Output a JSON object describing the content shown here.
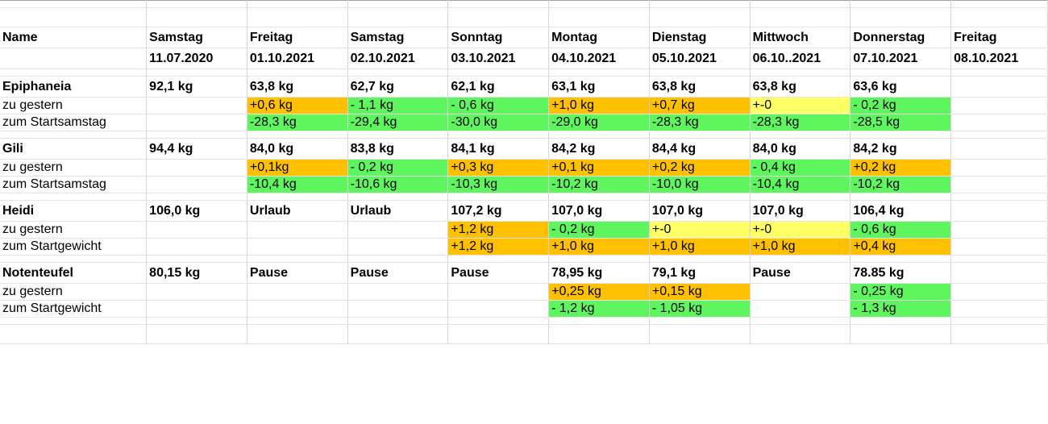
{
  "columns": [
    "Name",
    "Samstag",
    "Freitag",
    "Samstag",
    "Sonntag",
    "Montag",
    "Dienstag",
    "Mittwoch",
    "Donnerstag",
    "Freitag"
  ],
  "dates": [
    "",
    "11.07.2020",
    "01.10.2021",
    "02.10.2021",
    "03.10.2021",
    "04.10.2021",
    "05.10.2021",
    "06.10..2021",
    "07.10.2021",
    "08.10.2021"
  ],
  "colors": {
    "orange": "#ffc000",
    "green": "#5ef55e",
    "yellow": "#ffff66"
  },
  "people": [
    {
      "name": "Epiphaneia",
      "values": [
        "92,1 kg",
        "63,8 kg",
        "62,7 kg",
        "62,1 kg",
        "63,1 kg",
        "63,8 kg",
        "63,8 kg",
        "63,6 kg",
        ""
      ],
      "rows": [
        {
          "label": "zu gestern",
          "values": [
            "",
            "+0,6 kg",
            "- 1,1 kg",
            "- 0,6 kg",
            "+1,0 kg",
            "+0,7 kg",
            "+-0",
            "- 0,2 kg",
            ""
          ],
          "colors": [
            "",
            "orange",
            "green",
            "green",
            "orange",
            "orange",
            "yellow",
            "green",
            ""
          ]
        },
        {
          "label": "zum Startsamstag",
          "values": [
            "",
            "-28,3 kg",
            "-29,4 kg",
            "-30,0 kg",
            "-29,0 kg",
            "-28,3 kg",
            "-28,3 kg",
            "-28,5 kg",
            ""
          ],
          "colors": [
            "",
            "green",
            "green",
            "green",
            "green",
            "green",
            "green",
            "green",
            ""
          ]
        }
      ]
    },
    {
      "name": "Gili",
      "values": [
        "94,4 kg",
        "84,0 kg",
        "83,8 kg",
        "84,1 kg",
        "84,2 kg",
        "84,4 kg",
        "84,0 kg",
        "84,2 kg",
        ""
      ],
      "rows": [
        {
          "label": "zu gestern",
          "values": [
            "",
            "+0,1kg",
            "- 0,2 kg",
            "+0,3 kg",
            "+0,1 kg",
            "+0,2 kg",
            "- 0,4 kg",
            "+0,2 kg",
            ""
          ],
          "colors": [
            "",
            "orange",
            "green",
            "orange",
            "orange",
            "orange",
            "green",
            "orange",
            ""
          ]
        },
        {
          "label": "zum Startsamstag",
          "values": [
            "",
            "-10,4 kg",
            "-10,6 kg",
            "-10,3 kg",
            "-10,2 kg",
            "-10,0 kg",
            "-10,4 kg",
            "-10,2 kg",
            ""
          ],
          "colors": [
            "",
            "green",
            "green",
            "green",
            "green",
            "green",
            "green",
            "green",
            ""
          ]
        }
      ]
    },
    {
      "name": "Heidi",
      "values": [
        "106,0 kg",
        "Urlaub",
        "Urlaub",
        "107,2 kg",
        "107,0 kg",
        "107,0 kg",
        "107,0 kg",
        "106,4 kg",
        ""
      ],
      "rows": [
        {
          "label": "zu gestern",
          "values": [
            "",
            "",
            "",
            "+1,2 kg",
            "- 0,2 kg",
            "+-0",
            "+-0",
            "- 0,6 kg",
            ""
          ],
          "colors": [
            "",
            "",
            "",
            "orange",
            "green",
            "yellow",
            "yellow",
            "green",
            ""
          ]
        },
        {
          "label": "zum Startgewicht",
          "values": [
            "",
            "",
            "",
            "+1,2 kg",
            "+1,0 kg",
            "+1,0 kg",
            "+1,0 kg",
            "+0,4 kg",
            ""
          ],
          "colors": [
            "",
            "",
            "",
            "orange",
            "orange",
            "orange",
            "orange",
            "orange",
            ""
          ]
        }
      ]
    },
    {
      "name": "Notenteufel",
      "values": [
        "80,15 kg",
        "Pause",
        "Pause",
        "Pause",
        "78,95 kg",
        "79,1 kg",
        "Pause",
        "78.85 kg",
        ""
      ],
      "rows": [
        {
          "label": "zu gestern",
          "values": [
            "",
            "",
            "",
            "",
            "+0,25 kg",
            "+0,15 kg",
            "",
            "- 0,25 kg",
            ""
          ],
          "colors": [
            "",
            "",
            "",
            "",
            "orange",
            "orange",
            "",
            "green",
            ""
          ]
        },
        {
          "label": "zum Startgewicht",
          "values": [
            "",
            "",
            "",
            "",
            "- 1,2 kg",
            "- 1,05 kg",
            "",
            "- 1,3 kg",
            ""
          ],
          "colors": [
            "",
            "",
            "",
            "",
            "green",
            "green",
            "",
            "green",
            ""
          ]
        }
      ]
    }
  ]
}
